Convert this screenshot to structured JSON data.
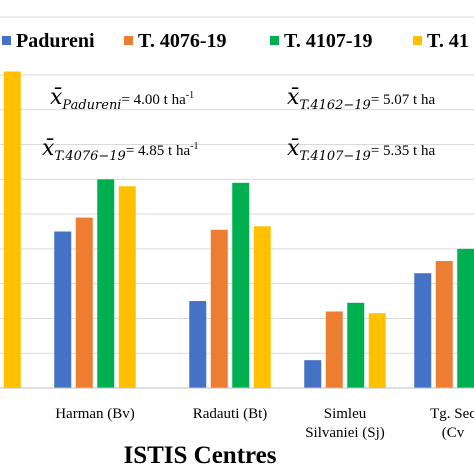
{
  "chart_data": {
    "type": "bar",
    "xlabel": "ISTIS Centres",
    "ylabel": "",
    "ylim": [
      0,
      9
    ],
    "grid": "horizontal",
    "legend_placement": "top",
    "categories": [
      ")",
      "Harman (Bv)",
      "Radauti (Bt)",
      "Simleu\nSilvaniei (Sj)",
      "Tg. Sec\n(Cv"
    ],
    "series": [
      {
        "name": "Padureni",
        "color": "#4472c4",
        "values": [
          null,
          4.5,
          2.5,
          0.8,
          3.3
        ]
      },
      {
        "name": "T. 4076-19",
        "color": "#ed7d31",
        "values": [
          null,
          4.9,
          4.55,
          2.2,
          3.65
        ]
      },
      {
        "name": "T. 4107-19",
        "color": "#00b050",
        "values": [
          null,
          6.0,
          5.9,
          2.45,
          4.0
        ]
      },
      {
        "name": "T. 41",
        "color": "#ffc000",
        "values": [
          9.1,
          5.8,
          4.65,
          2.15,
          null
        ]
      }
    ],
    "annotations": [
      {
        "symbol": "x̄",
        "sub": "Padureni",
        "text": "= 4.00 t ha",
        "sup": "-1"
      },
      {
        "symbol": "x̄",
        "sub": "T.4162−19",
        "text": "= 5.07 t ha",
        "sup": ""
      },
      {
        "symbol": "x̄",
        "sub": "T.4076−19",
        "text": "= 4.85 t ha",
        "sup": "-1"
      },
      {
        "symbol": "x̄",
        "sub": "T.4107−19",
        "text": "= 5.35 t ha",
        "sup": ""
      }
    ]
  }
}
